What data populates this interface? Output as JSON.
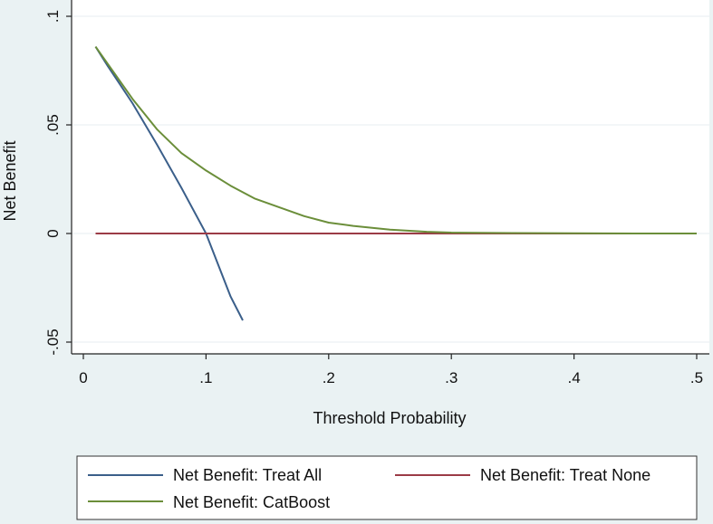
{
  "chart_data": {
    "type": "line",
    "xlabel": "Threshold Probability",
    "ylabel": "Net Benefit",
    "xlim": [
      0,
      0.5
    ],
    "ylim": [
      -0.05,
      0.1
    ],
    "x_ticks": [
      {
        "value": 0,
        "label": "0"
      },
      {
        "value": 0.1,
        "label": ".1"
      },
      {
        "value": 0.2,
        "label": ".2"
      },
      {
        "value": 0.3,
        "label": ".3"
      },
      {
        "value": 0.4,
        "label": ".4"
      },
      {
        "value": 0.5,
        "label": ".5"
      }
    ],
    "y_ticks": [
      {
        "value": -0.05,
        "label": "-.05"
      },
      {
        "value": 0,
        "label": "0"
      },
      {
        "value": 0.05,
        "label": ".05"
      },
      {
        "value": 0.1,
        "label": ".1"
      }
    ],
    "grid": "horizontal",
    "legend_position": "bottom",
    "series": [
      {
        "name": "Net Benefit: Treat All",
        "color": "#3b5f8a",
        "x": [
          0.01,
          0.02,
          0.04,
          0.06,
          0.08,
          0.1,
          0.12,
          0.13
        ],
        "y": [
          0.086,
          0.077,
          0.06,
          0.041,
          0.021,
          0.0,
          -0.029,
          -0.04
        ]
      },
      {
        "name": "Net Benefit: Treat None",
        "color": "#9b3b46",
        "x": [
          0.01,
          0.5
        ],
        "y": [
          0,
          0
        ]
      },
      {
        "name": "Net Benefit: CatBoost",
        "color": "#6b8e3a",
        "x": [
          0.01,
          0.02,
          0.04,
          0.06,
          0.08,
          0.1,
          0.12,
          0.14,
          0.16,
          0.18,
          0.2,
          0.22,
          0.25,
          0.28,
          0.3,
          0.35,
          0.4,
          0.45,
          0.5
        ],
        "y": [
          0.086,
          0.078,
          0.062,
          0.048,
          0.037,
          0.029,
          0.022,
          0.016,
          0.012,
          0.008,
          0.005,
          0.0035,
          0.0018,
          0.0008,
          0.0004,
          0.0002,
          0.0001,
          0.0,
          0.0
        ]
      }
    ]
  }
}
